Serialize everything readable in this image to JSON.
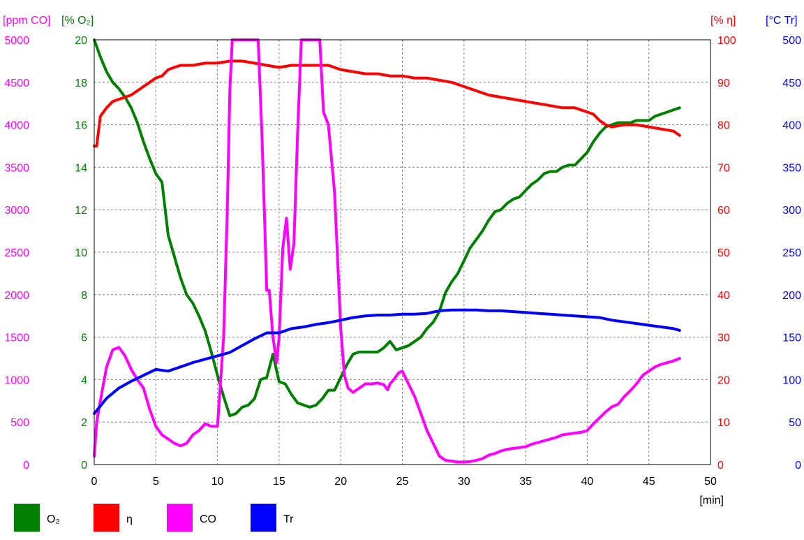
{
  "chart_data": {
    "type": "line",
    "xlabel": "[min]",
    "xlim": [
      0,
      50
    ],
    "x_ticks": [
      "0",
      "5",
      "10",
      "15",
      "20",
      "25",
      "30",
      "35",
      "40",
      "45",
      "50"
    ],
    "grid": true,
    "legend_position": "bottom-left",
    "axes": [
      {
        "id": "co",
        "side": "left-outer",
        "label": "[ppm CO]",
        "color": "#ff00ff",
        "range": [
          0,
          5000
        ],
        "ticks": [
          "0",
          "500",
          "1000",
          "1500",
          "2000",
          "2500",
          "3000",
          "3500",
          "4000",
          "4500",
          "5000"
        ]
      },
      {
        "id": "o2",
        "side": "left-inner",
        "label": "[% O₂]",
        "color": "#008000",
        "range": [
          0,
          20
        ],
        "ticks": [
          "0",
          "2",
          "4",
          "6",
          "8",
          "10",
          "12",
          "14",
          "16",
          "18",
          "20"
        ]
      },
      {
        "id": "eta",
        "side": "right-inner",
        "label": "[% η]",
        "color": "#ff0000",
        "range": [
          0,
          100
        ],
        "ticks": [
          "0",
          "10",
          "20",
          "30",
          "40",
          "50",
          "60",
          "70",
          "80",
          "90",
          "100"
        ]
      },
      {
        "id": "tr",
        "side": "right-outer",
        "label": "[°C Tr]",
        "color": "#0000ff",
        "range": [
          0,
          500
        ],
        "ticks": [
          "0",
          "50",
          "100",
          "150",
          "200",
          "250",
          "300",
          "350",
          "400",
          "450",
          "500"
        ]
      }
    ],
    "series": [
      {
        "name": "O₂",
        "axis": "o2",
        "color": "#008000",
        "x": [
          0,
          0.5,
          1,
          1.5,
          2,
          2.5,
          3,
          3.5,
          4,
          4.5,
          5,
          5.5,
          6,
          6.5,
          7,
          7.5,
          8,
          8.5,
          9,
          9.5,
          10,
          10.5,
          11,
          11.5,
          12,
          12.5,
          13,
          13.5,
          14,
          14.5,
          15,
          15.5,
          16,
          16.5,
          17,
          17.5,
          18,
          18.5,
          19,
          19.5,
          20,
          20.5,
          21,
          21.5,
          22,
          22.5,
          23,
          23.5,
          24,
          24.5,
          25,
          25.5,
          26,
          26.5,
          27,
          27.5,
          28,
          28.5,
          29,
          29.5,
          30,
          30.5,
          31,
          31.5,
          32,
          32.5,
          33,
          33.5,
          34,
          34.5,
          35,
          35.5,
          36,
          36.5,
          37,
          37.5,
          38,
          38.5,
          39,
          39.5,
          40,
          40.5,
          41,
          41.5,
          42,
          42.5,
          43,
          43.5,
          44,
          44.5,
          45,
          45.5,
          46,
          46.5,
          47,
          47.5
        ],
        "values": [
          20,
          19.2,
          18.5,
          18.0,
          17.7,
          17.3,
          16.8,
          16.1,
          15.2,
          14.4,
          13.7,
          13.3,
          10.8,
          9.8,
          8.8,
          8.0,
          7.6,
          7.0,
          6.3,
          5.3,
          4.2,
          3.2,
          2.3,
          2.4,
          2.7,
          2.8,
          3.1,
          4.0,
          4.1,
          5.2,
          3.9,
          3.8,
          3.3,
          2.9,
          2.8,
          2.7,
          2.8,
          3.1,
          3.5,
          3.5,
          4.1,
          4.7,
          5.2,
          5.3,
          5.3,
          5.3,
          5.3,
          5.5,
          5.8,
          5.4,
          5.5,
          5.6,
          5.8,
          6.0,
          6.4,
          6.7,
          7.2,
          8.1,
          8.6,
          9.0,
          9.6,
          10.2,
          10.6,
          11.0,
          11.5,
          11.9,
          12.0,
          12.3,
          12.5,
          12.6,
          12.9,
          13.2,
          13.4,
          13.7,
          13.8,
          13.8,
          14.0,
          14.1,
          14.1,
          14.4,
          14.7,
          15.2,
          15.6,
          15.9,
          16.0,
          16.1,
          16.1,
          16.1,
          16.2,
          16.2,
          16.2,
          16.4,
          16.5,
          16.6,
          16.7,
          16.8
        ]
      },
      {
        "name": "η",
        "axis": "eta",
        "color": "#ff0000",
        "x": [
          0,
          0.2,
          0.5,
          1,
          1.5,
          2,
          2.5,
          3,
          3.5,
          4,
          4.5,
          5,
          5.5,
          6,
          6.5,
          7,
          8,
          9,
          10,
          11,
          12,
          13,
          14,
          15,
          16,
          17,
          18,
          19,
          20,
          21,
          22,
          23,
          24,
          25,
          26,
          27,
          28,
          29,
          30,
          31,
          32,
          33,
          34,
          35,
          36,
          37,
          38,
          39,
          40,
          40.5,
          41,
          41.5,
          42,
          43,
          44,
          45,
          46,
          47,
          47.5
        ],
        "values": [
          75,
          75,
          82,
          84,
          85.5,
          86,
          86.5,
          87,
          88,
          89,
          90,
          91,
          91.5,
          93,
          93.5,
          94,
          94,
          94.5,
          94.5,
          95,
          95,
          94.5,
          94,
          93.5,
          94,
          94,
          94,
          94,
          93,
          92.5,
          92,
          92,
          91.5,
          91.5,
          91,
          91,
          90.5,
          90,
          89,
          88,
          87,
          86.5,
          86,
          85.5,
          85,
          84.5,
          84,
          84,
          83,
          82.5,
          81,
          80,
          79.5,
          80,
          80,
          79.5,
          79,
          78.5,
          77.5
        ]
      },
      {
        "name": "CO",
        "axis": "co",
        "color": "#ff00ff",
        "x": [
          0,
          0.2,
          0.5,
          1,
          1.5,
          2,
          2.5,
          3,
          3.5,
          4,
          4.5,
          5,
          5.5,
          6,
          6.5,
          7,
          7.5,
          8,
          8.5,
          9,
          9.5,
          10,
          10.5,
          10.8,
          11,
          11.2,
          11.5,
          12,
          12.5,
          13,
          13.3,
          13.6,
          13.8,
          14,
          14.2,
          14.5,
          14.8,
          15,
          15.3,
          15.6,
          15.9,
          16.2,
          16.5,
          16.8,
          17.1,
          17.5,
          18,
          18.3,
          18.6,
          19,
          19.5,
          20,
          20.3,
          20.6,
          21,
          21.5,
          22,
          22.5,
          23,
          23.5,
          23.8,
          24,
          24.3,
          24.7,
          25,
          25.5,
          26,
          26.5,
          27,
          27.5,
          28,
          28.5,
          29,
          29.5,
          30,
          30.5,
          31,
          31.5,
          32,
          32.5,
          33,
          33.5,
          34,
          34.5,
          35,
          35.5,
          36,
          36.5,
          37,
          37.5,
          38,
          38.5,
          39,
          39.5,
          40,
          40.5,
          41,
          41.5,
          42,
          42.5,
          43,
          43.5,
          44,
          44.5,
          45,
          45.5,
          46,
          46.5,
          47,
          47.5
        ],
        "values": [
          100,
          500,
          750,
          1150,
          1350,
          1380,
          1280,
          1120,
          1000,
          900,
          650,
          450,
          350,
          300,
          250,
          220,
          250,
          350,
          400,
          480,
          450,
          450,
          1500,
          3000,
          4400,
          5000,
          5000,
          5000,
          5000,
          5000,
          5000,
          3900,
          3000,
          2050,
          2050,
          1500,
          1200,
          1500,
          2550,
          2900,
          2300,
          2600,
          3900,
          5000,
          5000,
          5000,
          5000,
          5000,
          4150,
          4000,
          3200,
          1600,
          1050,
          900,
          850,
          900,
          950,
          950,
          960,
          940,
          880,
          950,
          1000,
          1080,
          1100,
          950,
          800,
          600,
          400,
          250,
          100,
          50,
          40,
          30,
          30,
          35,
          50,
          70,
          110,
          130,
          160,
          180,
          190,
          200,
          210,
          240,
          260,
          280,
          300,
          320,
          350,
          360,
          370,
          380,
          400,
          480,
          550,
          620,
          680,
          710,
          800,
          870,
          950,
          1050,
          1100,
          1150,
          1180,
          1200,
          1220,
          1250
        ]
      },
      {
        "name": "Tr",
        "axis": "tr",
        "color": "#0000ff",
        "x": [
          0,
          1,
          2,
          3,
          4,
          5,
          6,
          7,
          8,
          9,
          10,
          11,
          12,
          13,
          14,
          15,
          16,
          17,
          18,
          19,
          20,
          21,
          22,
          23,
          24,
          25,
          26,
          27,
          28,
          29,
          30,
          31,
          32,
          33,
          34,
          35,
          36,
          37,
          38,
          39,
          40,
          41,
          42,
          43,
          44,
          45,
          46,
          47,
          47.5
        ],
        "values": [
          60,
          78,
          90,
          98,
          105,
          112,
          110,
          115,
          120,
          124,
          128,
          132,
          140,
          148,
          155,
          155,
          160,
          162,
          165,
          167,
          170,
          173,
          175,
          176,
          176,
          177,
          177,
          178,
          181,
          182,
          182,
          182,
          181,
          181,
          180,
          179,
          178,
          177,
          176,
          175,
          174,
          173,
          170,
          168,
          166,
          164,
          162,
          160,
          158
        ]
      }
    ]
  }
}
